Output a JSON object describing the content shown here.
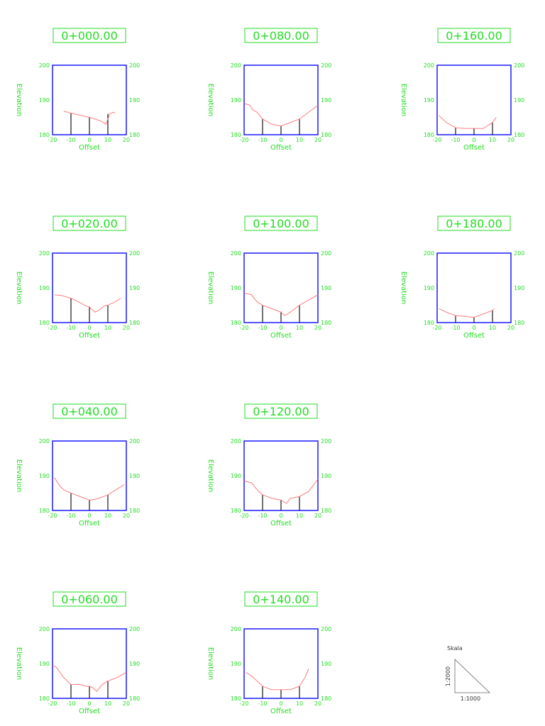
{
  "axis": {
    "xlabel": "Offset",
    "ylabel": "Elevation",
    "xticks": [
      "-20",
      "-10",
      "0",
      "10",
      "20"
    ],
    "yticks": [
      "180",
      "190",
      "200"
    ]
  },
  "scale": {
    "label": "Skala",
    "vertical": "1:2000",
    "horizontal": "1:1000"
  },
  "colors": {
    "text": "#22dd22",
    "frame": "#1a1aff",
    "ground": "#ff6a6a",
    "stakes": "#000000"
  },
  "chart_data": [
    {
      "type": "line",
      "title": "0+000.00",
      "xlabel": "Offset",
      "ylabel": "Elevation",
      "xlim": [
        -20,
        20
      ],
      "ylim": [
        180,
        200
      ],
      "xticks": [
        -20,
        -10,
        0,
        10,
        20
      ],
      "yticks": [
        180,
        190,
        200
      ],
      "series": [
        {
          "x": [
            -14,
            -10,
            -5,
            0,
            3,
            6,
            9,
            11,
            13,
            14
          ],
          "y": [
            186.8,
            186.2,
            185.6,
            185.0,
            184.5,
            184.0,
            183.0,
            186.0,
            186.5,
            186.2
          ]
        }
      ],
      "stakes": [
        {
          "x": -10,
          "y": 186.2
        },
        {
          "x": 0,
          "y": 185.0
        },
        {
          "x": 10,
          "y": 186.0
        }
      ]
    },
    {
      "type": "line",
      "title": "0+020.00",
      "xlabel": "Offset",
      "ylabel": "Elevation",
      "xlim": [
        -20,
        20
      ],
      "ylim": [
        180,
        200
      ],
      "xticks": [
        -20,
        -10,
        0,
        10,
        20
      ],
      "yticks": [
        180,
        190,
        200
      ],
      "series": [
        {
          "x": [
            -19,
            -15,
            -10,
            -6,
            -2,
            0,
            3,
            5,
            8,
            10,
            14,
            17
          ],
          "y": [
            188.0,
            187.8,
            187.0,
            186.0,
            184.8,
            184.5,
            183.0,
            183.5,
            184.8,
            185.0,
            186.0,
            187.0
          ]
        }
      ],
      "stakes": [
        {
          "x": -10,
          "y": 187.0
        },
        {
          "x": 0,
          "y": 184.5
        },
        {
          "x": 10,
          "y": 185.0
        }
      ]
    },
    {
      "type": "line",
      "title": "0+040.00",
      "xlabel": "Offset",
      "ylabel": "Elevation",
      "xlim": [
        -20,
        20
      ],
      "ylim": [
        180,
        200
      ],
      "xticks": [
        -20,
        -10,
        0,
        10,
        20
      ],
      "yticks": [
        180,
        190,
        200
      ],
      "series": [
        {
          "x": [
            -19,
            -16,
            -14,
            -10,
            -5,
            0,
            3,
            5,
            10,
            13,
            16,
            19
          ],
          "y": [
            189.5,
            187.0,
            186.0,
            185.0,
            184.0,
            183.0,
            183.2,
            183.5,
            184.5,
            185.5,
            186.5,
            187.5
          ]
        }
      ],
      "stakes": [
        {
          "x": -10,
          "y": 185.0
        },
        {
          "x": 0,
          "y": 183.0
        },
        {
          "x": 10,
          "y": 184.5
        }
      ]
    },
    {
      "type": "line",
      "title": "0+060.00",
      "xlabel": "Offset",
      "ylabel": "Elevation",
      "xlim": [
        -20,
        20
      ],
      "ylim": [
        180,
        200
      ],
      "xticks": [
        -20,
        -10,
        0,
        10,
        20
      ],
      "yticks": [
        180,
        190,
        200
      ],
      "series": [
        {
          "x": [
            -20,
            -18,
            -14,
            -10,
            -7,
            -5,
            -2,
            0,
            2,
            4,
            7,
            10,
            15,
            20
          ],
          "y": [
            189.5,
            189.0,
            186.0,
            184.0,
            184.0,
            184.0,
            183.5,
            183.5,
            183.0,
            182.0,
            184.0,
            185.0,
            186.0,
            187.5
          ]
        }
      ],
      "stakes": [
        {
          "x": -10,
          "y": 184.0
        },
        {
          "x": 0,
          "y": 183.5
        },
        {
          "x": 10,
          "y": 185.0
        }
      ]
    },
    {
      "type": "line",
      "title": "0+080.00",
      "xlabel": "Offset",
      "ylabel": "Elevation",
      "xlim": [
        -20,
        20
      ],
      "ylim": [
        180,
        200
      ],
      "xticks": [
        -20,
        -10,
        0,
        10,
        20
      ],
      "yticks": [
        180,
        190,
        200
      ],
      "series": [
        {
          "x": [
            -20,
            -17,
            -15,
            -13,
            -10,
            -5,
            0,
            5,
            10,
            15,
            20
          ],
          "y": [
            189.0,
            188.5,
            187.0,
            186.5,
            184.5,
            183.0,
            182.5,
            183.5,
            184.5,
            186.5,
            188.5
          ]
        }
      ],
      "stakes": [
        {
          "x": -10,
          "y": 184.5
        },
        {
          "x": 0,
          "y": 182.5
        },
        {
          "x": 10,
          "y": 184.5
        }
      ]
    },
    {
      "type": "line",
      "title": "0+100.00",
      "xlabel": "Offset",
      "ylabel": "Elevation",
      "xlim": [
        -20,
        20
      ],
      "ylim": [
        180,
        200
      ],
      "xticks": [
        -20,
        -10,
        0,
        10,
        20
      ],
      "yticks": [
        180,
        190,
        200
      ],
      "series": [
        {
          "x": [
            -20,
            -16,
            -13,
            -10,
            -5,
            0,
            2,
            5,
            10,
            15,
            20
          ],
          "y": [
            188.5,
            188.0,
            186.0,
            185.0,
            184.0,
            183.0,
            182.0,
            183.0,
            185.0,
            186.5,
            188.0
          ]
        }
      ],
      "stakes": [
        {
          "x": -10,
          "y": 185.0
        },
        {
          "x": 0,
          "y": 183.0
        },
        {
          "x": 10,
          "y": 185.0
        }
      ]
    },
    {
      "type": "line",
      "title": "0+120.00",
      "xlabel": "Offset",
      "ylabel": "Elevation",
      "xlim": [
        -20,
        20
      ],
      "ylim": [
        180,
        200
      ],
      "xticks": [
        -20,
        -10,
        0,
        10,
        20
      ],
      "yticks": [
        180,
        190,
        200
      ],
      "series": [
        {
          "x": [
            -20,
            -16,
            -13,
            -10,
            -5,
            0,
            3,
            5,
            10,
            15,
            20
          ],
          "y": [
            188.5,
            188.0,
            186.0,
            184.5,
            183.5,
            183.0,
            182.0,
            183.5,
            184.0,
            185.5,
            189.0
          ]
        }
      ],
      "stakes": [
        {
          "x": -10,
          "y": 184.5
        },
        {
          "x": 0,
          "y": 183.0
        },
        {
          "x": 10,
          "y": 184.0
        }
      ]
    },
    {
      "type": "line",
      "title": "0+140.00",
      "xlabel": "Offset",
      "ylabel": "Elevation",
      "xlim": [
        -20,
        20
      ],
      "ylim": [
        180,
        200
      ],
      "xticks": [
        -20,
        -10,
        0,
        10,
        20
      ],
      "yticks": [
        180,
        190,
        200
      ],
      "series": [
        {
          "x": [
            -19,
            -15,
            -10,
            -5,
            0,
            5,
            10,
            13,
            15
          ],
          "y": [
            187.5,
            186.0,
            183.5,
            182.5,
            182.5,
            182.5,
            183.5,
            186.0,
            188.5
          ]
        }
      ],
      "stakes": [
        {
          "x": -10,
          "y": 183.5
        },
        {
          "x": 0,
          "y": 182.5
        },
        {
          "x": 10,
          "y": 183.5
        }
      ]
    },
    {
      "type": "line",
      "title": "0+160.00",
      "xlabel": "Offset",
      "ylabel": "Elevation",
      "xlim": [
        -20,
        20
      ],
      "ylim": [
        180,
        200
      ],
      "xticks": [
        -20,
        -10,
        0,
        10,
        20
      ],
      "yticks": [
        180,
        190,
        200
      ],
      "series": [
        {
          "x": [
            -19,
            -15,
            -10,
            -5,
            0,
            5,
            10,
            12
          ],
          "y": [
            185.5,
            183.5,
            182.0,
            181.8,
            181.8,
            181.8,
            183.5,
            185.0
          ]
        }
      ],
      "stakes": [
        {
          "x": -10,
          "y": 182.0
        },
        {
          "x": 0,
          "y": 181.8
        },
        {
          "x": 10,
          "y": 183.5
        }
      ]
    },
    {
      "type": "line",
      "title": "0+180.00",
      "xlabel": "Offset",
      "ylabel": "Elevation",
      "xlim": [
        -20,
        20
      ],
      "ylim": [
        180,
        200
      ],
      "xticks": [
        -20,
        -10,
        0,
        10,
        20
      ],
      "yticks": [
        180,
        190,
        200
      ],
      "series": [
        {
          "x": [
            -19,
            -15,
            -10,
            -5,
            0,
            5,
            10,
            11
          ],
          "y": [
            184.0,
            183.0,
            182.0,
            181.8,
            181.5,
            182.5,
            183.5,
            184.0
          ]
        }
      ],
      "stakes": [
        {
          "x": -10,
          "y": 182.0
        },
        {
          "x": 0,
          "y": 181.5
        },
        {
          "x": 10,
          "y": 183.5
        }
      ]
    }
  ]
}
